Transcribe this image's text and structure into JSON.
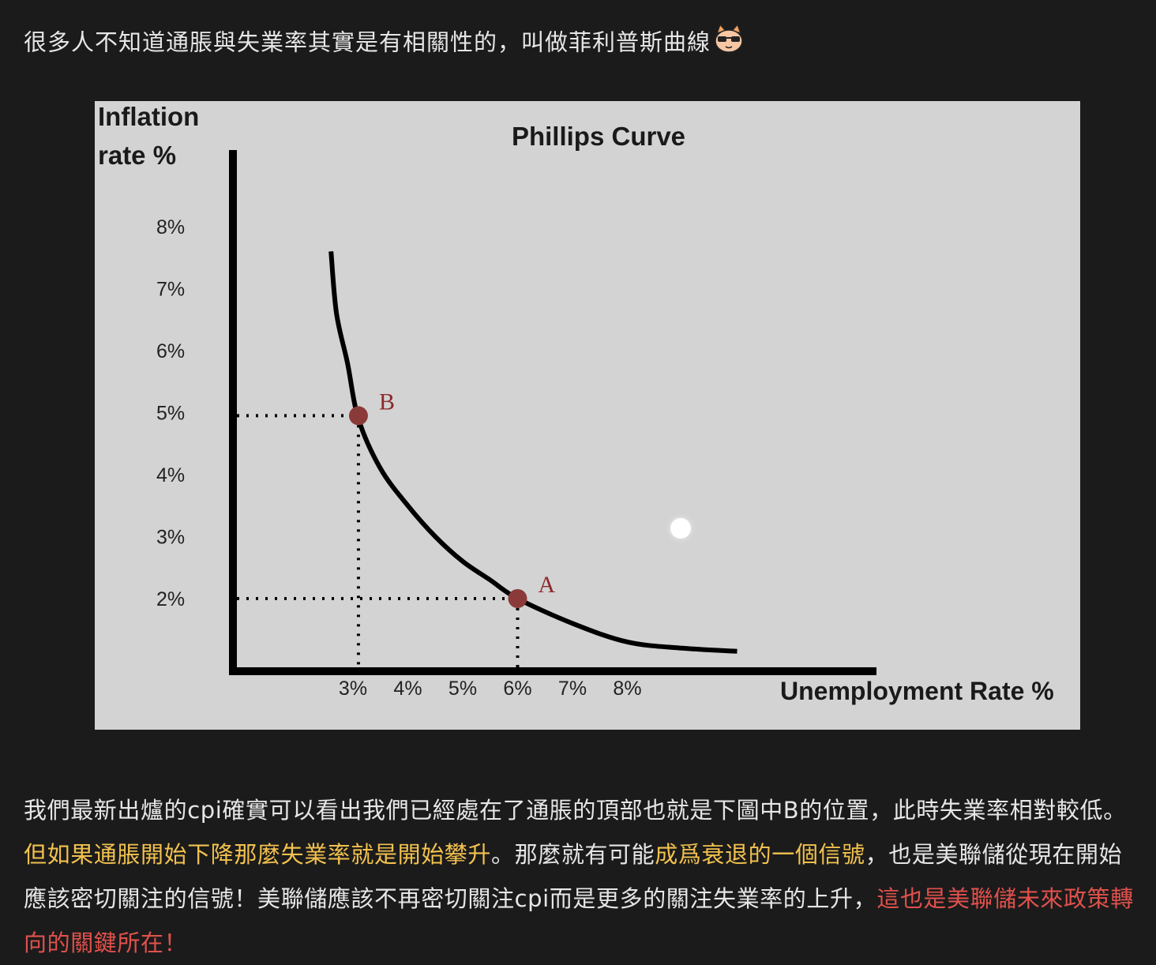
{
  "post": {
    "intro": "很多人不知道通脹與失業率其實是有相關性的，叫做菲利普斯曲線",
    "emoji": "cool-cat-face",
    "paragraph": [
      {
        "text": "我們最新出爐的cpi確實可以看出我們已經處在了通脹的頂部也就是下圖中B的位置，此時失業率相對較低。",
        "style": "normal"
      },
      {
        "text": "但如果通脹開始下降那麼失業率就是開始攀升",
        "style": "yellow"
      },
      {
        "text": "。那麼就有可能",
        "style": "normal"
      },
      {
        "text": "成爲衰退的一個信號",
        "style": "yellow"
      },
      {
        "text": "，也是美聯儲從現在開始應該密切關注的信號！美聯儲應該不再密切關注cpi而是更多的關注失業率的上升，",
        "style": "normal"
      },
      {
        "text": "這也是美聯儲未來政策轉向的關鍵所在！",
        "style": "red"
      }
    ]
  },
  "chart_data": {
    "type": "line",
    "title": "Phillips Curve",
    "ylabel": "Inflation rate %",
    "xlabel": "Unemployment Rate %",
    "y_ticks": [
      "8%",
      "7%",
      "6%",
      "5%",
      "4%",
      "3%",
      "2%"
    ],
    "x_ticks": [
      "3%",
      "4%",
      "5%",
      "6%",
      "7%",
      "8%"
    ],
    "series": [
      {
        "x": [
          2.6,
          2.7,
          2.9,
          3.1,
          3.5,
          4.0,
          4.5,
          5.0,
          5.5,
          6.0,
          7.0,
          8.0,
          9.0,
          10.0
        ],
        "y": [
          7.6,
          6.6,
          5.8,
          4.9,
          4.1,
          3.5,
          3.0,
          2.6,
          2.3,
          2.0,
          1.6,
          1.3,
          1.2,
          1.15
        ]
      }
    ],
    "points": [
      {
        "label": "B",
        "x": 3.1,
        "y": 4.95
      },
      {
        "label": "A",
        "x": 6.0,
        "y": 2.0
      }
    ],
    "colors": {
      "curve": "#000000",
      "point": "#8b3a3a",
      "point_label": "#8b2a2a",
      "background": "#d3d3d3"
    }
  }
}
